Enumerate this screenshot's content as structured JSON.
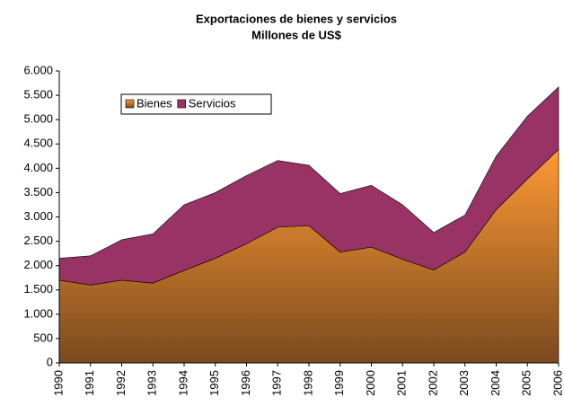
{
  "chart_data": {
    "type": "stacked_area",
    "title": "Exportaciones de bienes y servicios",
    "subtitle": "Millones de US$",
    "categories": [
      "1990",
      "1991",
      "1992",
      "1993",
      "1994",
      "1995",
      "1996",
      "1997",
      "1998",
      "1999",
      "2000",
      "2001",
      "2002",
      "2003",
      "2004",
      "2005",
      "2006"
    ],
    "series": [
      {
        "name": "Bienes",
        "color": "#ff9933",
        "values": [
          1700,
          1600,
          1700,
          1640,
          1900,
          2150,
          2450,
          2790,
          2820,
          2280,
          2380,
          2130,
          1910,
          2280,
          3150,
          3780,
          4390
        ]
      },
      {
        "name": "Servicios",
        "color": "#993366",
        "values": [
          450,
          600,
          830,
          1010,
          1350,
          1350,
          1400,
          1370,
          1240,
          1200,
          1270,
          1120,
          770,
          760,
          1100,
          1290,
          1280
        ]
      }
    ],
    "ylim": [
      0,
      6000
    ],
    "yticks": [
      0,
      500,
      {
        "value": 1000,
        "label": "1.000"
      },
      {
        "value": 1500,
        "label": "1.500"
      },
      {
        "value": 2000,
        "label": "2.000"
      },
      {
        "value": 2500,
        "label": "2.500"
      },
      {
        "value": 3000,
        "label": "3.000"
      },
      {
        "value": 3500,
        "label": "3.500"
      },
      {
        "value": 4000,
        "label": "4.000"
      },
      {
        "value": 4500,
        "label": "4.500"
      },
      {
        "value": 5000,
        "label": "5.000"
      },
      {
        "value": 5500,
        "label": "5.500"
      },
      {
        "value": 6000,
        "label": "6.000"
      }
    ],
    "legend": "upper left"
  }
}
